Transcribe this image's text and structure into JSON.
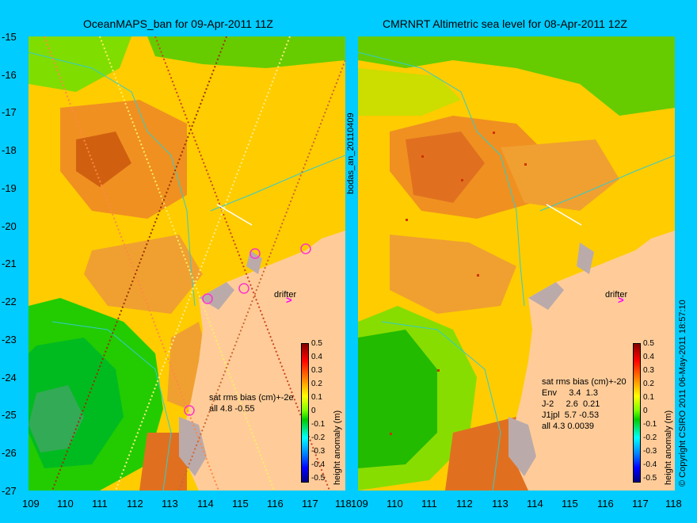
{
  "left_panel": {
    "title": "OceanMAPS_ban for 09-Apr-2011 11Z",
    "stats_header": "sat rms bias (cm)+-2e",
    "stats_rows": [
      "all 4.8 -0.55"
    ],
    "drifter_label": "drifter"
  },
  "right_panel": {
    "title": "CMRNRT Altimetric sea level  for 08-Apr-2011 12Z",
    "stats_header": "sat rms bias (cm)+-20",
    "stats_rows": [
      "Env     3.4  1.3",
      "J-2     2.6  0.21",
      "J1jpl  5.7 -0.53",
      "all 4.3 0.0039"
    ],
    "drifter_label": "drifter"
  },
  "y_axis_labels": [
    "-15",
    "-16",
    "-17",
    "-18",
    "-19",
    "-20",
    "-21",
    "-22",
    "-23",
    "-24",
    "-25",
    "-26",
    "-27"
  ],
  "x_axis_labels_left": [
    "109",
    "110",
    "111",
    "112",
    "113",
    "114",
    "115",
    "116",
    "117",
    "118"
  ],
  "x_axis_labels_right": [
    "109",
    "110",
    "111",
    "112",
    "113",
    "114",
    "115",
    "116",
    "117",
    "118"
  ],
  "colorbar": {
    "label": "height anomaly (m)",
    "ticks": [
      "0.5",
      "0.4",
      "0.3",
      "0.2",
      "0.1",
      "0",
      "-0.1",
      "-0.2",
      "-0.3",
      "-0.4",
      "-0.5"
    ]
  },
  "side_text": "bodas_an_20110409",
  "copyright": "© Copyright CSIRO 2011   06-May-2011 18:57:10",
  "colors": {
    "background": "#00ccff",
    "land": "#ffcc99",
    "high": "#e07020",
    "mid": "#ffcc00",
    "low": "#00cc00"
  }
}
